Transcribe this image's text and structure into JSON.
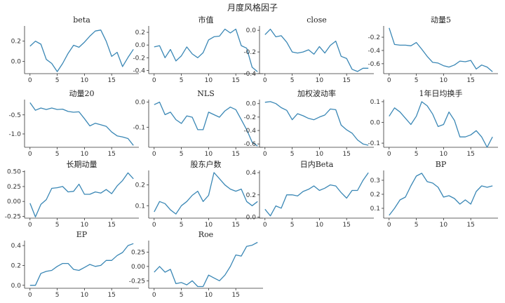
{
  "figure_title": "月度风格因子",
  "colors": {
    "series": "#3a87b5",
    "axis": "#333333",
    "text": "#222222"
  },
  "chart_data": [
    {
      "type": "line",
      "title": "beta",
      "ylim": [
        -0.12,
        0.35
      ],
      "yticks": [
        0.0,
        0.2
      ],
      "ytick_labels": [
        "0.0",
        "0.2"
      ],
      "x": [
        0,
        1,
        2,
        3,
        4,
        5,
        6,
        7,
        8,
        9,
        10,
        11,
        12,
        13,
        14,
        15,
        16,
        17,
        18,
        19
      ],
      "xticks": [
        0,
        5,
        10,
        15
      ],
      "xtick_labels": [
        "0",
        "5",
        "10",
        "15"
      ],
      "values": [
        0.15,
        0.2,
        0.17,
        0.02,
        -0.02,
        -0.1,
        -0.02,
        0.08,
        0.16,
        0.14,
        0.19,
        0.25,
        0.3,
        0.31,
        0.2,
        0.05,
        0.09,
        -0.05,
        0.04,
        0.12
      ]
    },
    {
      "type": "line",
      "title": "市值",
      "ylim": [
        -0.45,
        0.3
      ],
      "yticks": [
        -0.4,
        -0.2,
        0.0,
        0.2
      ],
      "ytick_labels": [
        "-0.4",
        "-0.2",
        "0.0",
        "0.2"
      ],
      "x": [
        0,
        1,
        2,
        3,
        4,
        5,
        6,
        7,
        8,
        9,
        10,
        11,
        12,
        13,
        14,
        15,
        16,
        17,
        18,
        19
      ],
      "xticks": [
        0,
        5,
        10,
        15
      ],
      "xtick_labels": [
        "0",
        "5",
        "10",
        "15"
      ],
      "values": [
        -0.03,
        -0.01,
        -0.2,
        -0.07,
        -0.25,
        -0.17,
        -0.03,
        -0.14,
        -0.2,
        -0.12,
        0.08,
        0.13,
        0.14,
        0.25,
        0.19,
        0.25,
        -0.01,
        -0.05,
        -0.35,
        -0.42
      ]
    },
    {
      "type": "line",
      "title": "close",
      "ylim": [
        -0.4,
        0.04
      ],
      "yticks": [
        -0.4,
        -0.2,
        0.0
      ],
      "ytick_labels": [
        "-0.4",
        "-0.2",
        "0.0"
      ],
      "x": [
        0,
        1,
        2,
        3,
        4,
        5,
        6,
        7,
        8,
        9,
        10,
        11,
        12,
        13,
        14,
        15,
        16,
        17,
        18,
        19
      ],
      "xticks": [
        0,
        5,
        10,
        15
      ],
      "xtick_labels": [
        "0",
        "5",
        "10",
        "15"
      ],
      "values": [
        -0.04,
        0.01,
        -0.06,
        -0.05,
        -0.11,
        -0.2,
        -0.21,
        -0.2,
        -0.18,
        -0.22,
        -0.15,
        -0.21,
        -0.14,
        -0.1,
        -0.24,
        -0.26,
        -0.36,
        -0.38,
        -0.35,
        -0.35
      ]
    },
    {
      "type": "line",
      "title": "动量5",
      "ylim": [
        -0.75,
        -0.03
      ],
      "yticks": [
        -0.6,
        -0.4,
        -0.2
      ],
      "ytick_labels": [
        "-0.6",
        "-0.4",
        "-0.2"
      ],
      "x": [
        0,
        1,
        2,
        3,
        4,
        5,
        6,
        7,
        8,
        9,
        10,
        11,
        12,
        13,
        14,
        15,
        16,
        17,
        18,
        19
      ],
      "xticks": [
        0,
        5,
        10,
        15
      ],
      "xtick_labels": [
        "0",
        "5",
        "10",
        "15"
      ],
      "values": [
        -0.06,
        -0.31,
        -0.32,
        -0.32,
        -0.33,
        -0.28,
        -0.38,
        -0.49,
        -0.58,
        -0.59,
        -0.63,
        -0.65,
        -0.62,
        -0.56,
        -0.57,
        -0.55,
        -0.68,
        -0.62,
        -0.65,
        -0.72
      ]
    },
    {
      "type": "line",
      "title": "动量20",
      "ylim": [
        -1.35,
        -0.1
      ],
      "yticks": [
        -1.0,
        -0.5
      ],
      "ytick_labels": [
        "-1.0",
        "-0.5"
      ],
      "x": [
        0,
        1,
        2,
        3,
        4,
        5,
        6,
        7,
        8,
        9,
        10,
        11,
        12,
        13,
        14,
        15,
        16,
        17,
        18,
        19
      ],
      "xticks": [
        0,
        5,
        10,
        15
      ],
      "xtick_labels": [
        "0",
        "5",
        "10",
        "15"
      ],
      "values": [
        -0.18,
        -0.38,
        -0.32,
        -0.36,
        -0.32,
        -0.36,
        -0.35,
        -0.41,
        -0.43,
        -0.42,
        -0.6,
        -0.79,
        -0.72,
        -0.76,
        -0.8,
        -0.95,
        -1.05,
        -1.08,
        -1.12,
        -1.3
      ]
    },
    {
      "type": "line",
      "title": "NLS",
      "ylim": [
        -0.18,
        0.01
      ],
      "yticks": [
        -0.1,
        0.0
      ],
      "ytick_labels": [
        "-0.1",
        "0.0"
      ],
      "x": [
        0,
        1,
        2,
        3,
        4,
        5,
        6,
        7,
        8,
        9,
        10,
        11,
        12,
        13,
        14,
        15,
        16,
        17,
        18,
        19
      ],
      "xticks": [
        0,
        5,
        10,
        15
      ],
      "xtick_labels": [
        "0",
        "5",
        "10",
        "15"
      ],
      "values": [
        -0.01,
        0.0,
        -0.05,
        -0.04,
        -0.07,
        -0.085,
        -0.055,
        -0.06,
        -0.11,
        -0.11,
        -0.04,
        -0.05,
        -0.06,
        -0.035,
        -0.02,
        -0.03,
        -0.07,
        -0.11,
        -0.16,
        -0.175
      ]
    },
    {
      "type": "line",
      "title": "加权波动率",
      "ylim": [
        -0.65,
        0.06
      ],
      "yticks": [
        -0.6,
        -0.4,
        -0.2,
        0.0
      ],
      "ytick_labels": [
        "-0.6",
        "-0.4",
        "-0.2",
        "0.0"
      ],
      "x": [
        0,
        1,
        2,
        3,
        4,
        5,
        6,
        7,
        8,
        9,
        10,
        11,
        12,
        13,
        14,
        15,
        16,
        17,
        18,
        19
      ],
      "xticks": [
        0,
        5,
        10,
        15
      ],
      "xtick_labels": [
        "0",
        "5",
        "10",
        "15"
      ],
      "values": [
        0.02,
        0.03,
        0.0,
        -0.06,
        -0.1,
        -0.24,
        -0.15,
        -0.18,
        -0.22,
        -0.24,
        -0.2,
        -0.17,
        -0.08,
        -0.09,
        -0.32,
        -0.39,
        -0.44,
        -0.54,
        -0.6,
        -0.62
      ]
    },
    {
      "type": "line",
      "title": "1年日均换手",
      "ylim": [
        -0.12,
        0.11
      ],
      "yticks": [
        -0.1,
        0.0,
        0.1
      ],
      "ytick_labels": [
        "-0.1",
        "0.0",
        "0.1"
      ],
      "x": [
        0,
        1,
        2,
        3,
        4,
        5,
        6,
        7,
        8,
        9,
        10,
        11,
        12,
        13,
        14,
        15,
        16,
        17,
        18,
        19
      ],
      "xticks": [
        0,
        5,
        10,
        15
      ],
      "xtick_labels": [
        "0",
        "5",
        "10",
        "15"
      ],
      "values": [
        0.03,
        0.07,
        0.05,
        0.02,
        -0.01,
        0.03,
        0.1,
        0.08,
        0.04,
        -0.02,
        -0.01,
        0.05,
        0.01,
        -0.07,
        -0.07,
        -0.06,
        -0.04,
        -0.07,
        -0.12,
        -0.07
      ]
    },
    {
      "type": "line",
      "title": "长期动量",
      "ylim": [
        -0.28,
        0.52
      ],
      "yticks": [
        -0.25,
        0.0,
        0.25,
        0.5
      ],
      "ytick_labels": [
        "-0.25",
        "0.00",
        "0.25",
        "0.50"
      ],
      "x": [
        0,
        1,
        2,
        3,
        4,
        5,
        6,
        7,
        8,
        9,
        10,
        11,
        12,
        13,
        14,
        15,
        16,
        17,
        18,
        19
      ],
      "xticks": [
        0,
        5,
        10,
        15
      ],
      "xtick_labels": [
        "0",
        "5",
        "10",
        "15"
      ],
      "values": [
        -0.03,
        -0.26,
        -0.05,
        0.03,
        0.22,
        0.23,
        0.25,
        0.16,
        0.17,
        0.29,
        0.12,
        0.12,
        0.16,
        0.14,
        0.2,
        0.13,
        0.26,
        0.35,
        0.48,
        0.38
      ]
    },
    {
      "type": "line",
      "title": "股东户数",
      "ylim": [
        0.04,
        0.27
      ],
      "yticks": [
        0.1,
        0.2
      ],
      "ytick_labels": [
        "0.1",
        "0.2"
      ],
      "x": [
        0,
        1,
        2,
        3,
        4,
        5,
        6,
        7,
        8,
        9,
        10,
        11,
        12,
        13,
        14,
        15,
        16,
        17,
        18,
        19
      ],
      "xticks": [
        0,
        5,
        10,
        15
      ],
      "xtick_labels": [
        "0",
        "5",
        "10",
        "15"
      ],
      "values": [
        0.07,
        0.12,
        0.11,
        0.08,
        0.06,
        0.1,
        0.12,
        0.15,
        0.17,
        0.12,
        0.15,
        0.26,
        0.23,
        0.2,
        0.18,
        0.17,
        0.18,
        0.12,
        0.1,
        0.12
      ]
    },
    {
      "type": "line",
      "title": "日内Beta",
      "ylim": [
        -0.01,
        0.42
      ],
      "yticks": [
        0.0,
        0.2,
        0.4
      ],
      "ytick_labels": [
        "0.0",
        "0.2",
        "0.4"
      ],
      "x": [
        0,
        1,
        2,
        3,
        4,
        5,
        6,
        7,
        8,
        9,
        10,
        11,
        12,
        13,
        14,
        15,
        16,
        17,
        18,
        19
      ],
      "xticks": [
        0,
        5,
        10,
        15
      ],
      "xtick_labels": [
        "0",
        "5",
        "10",
        "15"
      ],
      "values": [
        0.07,
        0.01,
        0.1,
        0.08,
        0.2,
        0.2,
        0.19,
        0.23,
        0.25,
        0.28,
        0.24,
        0.26,
        0.29,
        0.28,
        0.22,
        0.17,
        0.24,
        0.24,
        0.33,
        0.4
      ]
    },
    {
      "type": "line",
      "title": "BP",
      "ylim": [
        0.03,
        0.37
      ],
      "yticks": [
        0.1,
        0.2,
        0.3
      ],
      "ytick_labels": [
        "0.1",
        "0.2",
        "0.3"
      ],
      "x": [
        0,
        1,
        2,
        3,
        4,
        5,
        6,
        7,
        8,
        9,
        10,
        11,
        12,
        13,
        14,
        15,
        16,
        17,
        18,
        19
      ],
      "xticks": [
        0,
        5,
        10,
        15
      ],
      "xtick_labels": [
        "0",
        "5",
        "10",
        "15"
      ],
      "values": [
        0.05,
        0.1,
        0.16,
        0.18,
        0.26,
        0.33,
        0.35,
        0.29,
        0.28,
        0.25,
        0.18,
        0.19,
        0.17,
        0.13,
        0.16,
        0.13,
        0.22,
        0.26,
        0.25,
        0.26
      ]
    },
    {
      "type": "line",
      "title": "EP",
      "ylim": [
        -0.03,
        0.45
      ],
      "yticks": [
        0.0,
        0.2,
        0.4
      ],
      "ytick_labels": [
        "0.0",
        "0.2",
        "0.4"
      ],
      "x": [
        0,
        1,
        2,
        3,
        4,
        5,
        6,
        7,
        8,
        9,
        10,
        11,
        12,
        13,
        14,
        15,
        16,
        17,
        18,
        19
      ],
      "xticks": [
        0,
        5,
        10,
        15
      ],
      "xtick_labels": [
        "0",
        "5",
        "10",
        "15"
      ],
      "values": [
        0.0,
        0.0,
        0.12,
        0.14,
        0.15,
        0.19,
        0.22,
        0.22,
        0.16,
        0.15,
        0.18,
        0.21,
        0.19,
        0.2,
        0.25,
        0.25,
        0.3,
        0.33,
        0.4,
        0.42
      ]
    },
    {
      "type": "line",
      "title": "Roe",
      "ylim": [
        -0.38,
        0.45
      ],
      "yticks": [
        -0.25,
        0.0,
        0.25
      ],
      "ytick_labels": [
        "-0.25",
        "0.00",
        "0.25"
      ],
      "x": [
        0,
        1,
        2,
        3,
        4,
        5,
        6,
        7,
        8,
        9,
        10,
        11,
        12,
        13,
        14,
        15,
        16,
        17,
        18,
        19
      ],
      "xticks": [
        0,
        5,
        10,
        15
      ],
      "xtick_labels": [
        "0",
        "5",
        "10",
        "15"
      ],
      "values": [
        -0.1,
        0.0,
        -0.1,
        -0.05,
        -0.3,
        -0.28,
        -0.32,
        -0.25,
        -0.35,
        -0.35,
        -0.15,
        -0.2,
        -0.25,
        -0.15,
        0.0,
        0.2,
        0.18,
        0.35,
        0.37,
        0.42
      ]
    }
  ]
}
